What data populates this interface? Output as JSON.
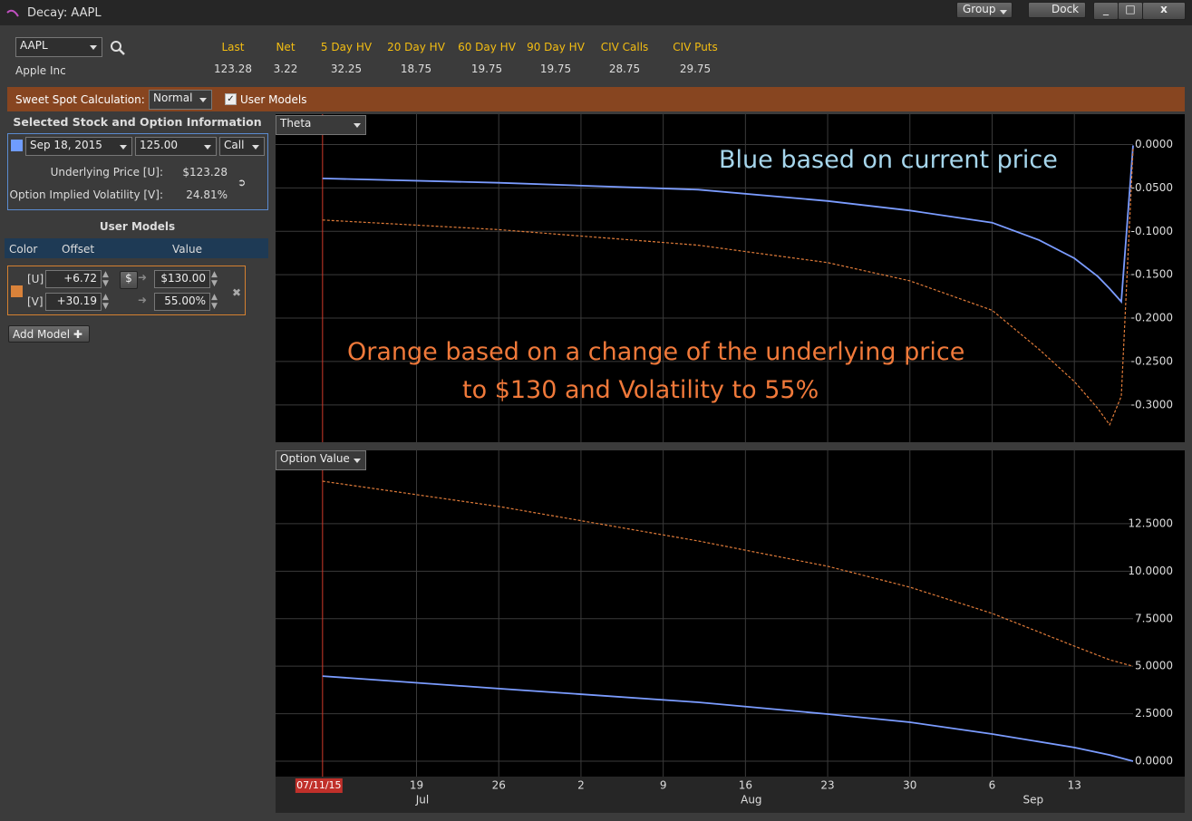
{
  "window": {
    "title": "Decay: AAPL",
    "buttons": [
      "Group",
      "Dock",
      "x"
    ]
  },
  "quote": {
    "symbol": "AAPL",
    "company": "Apple Inc",
    "fields": [
      {
        "label": "Last",
        "value": "123.28"
      },
      {
        "label": "Net",
        "value": "3.22"
      },
      {
        "label": "5 Day HV",
        "value": "32.25"
      },
      {
        "label": "20 Day HV",
        "value": "18.75"
      },
      {
        "label": "60 Day HV",
        "value": "19.75"
      },
      {
        "label": "90 Day HV",
        "value": "19.75"
      },
      {
        "label": "CIV Calls",
        "value": "28.75"
      },
      {
        "label": "CIV Puts",
        "value": "29.75"
      }
    ]
  },
  "toolbar": {
    "label": "Sweet Spot Calculation:",
    "mode": "Normal",
    "user_models": "User Models"
  },
  "selected": {
    "title": "Selected Stock and Option Information",
    "expiry": "Sep 18, 2015",
    "strike": "125.00",
    "type": "Call",
    "rows": [
      {
        "label": "Underlying Price [U]:",
        "value": "$123.28"
      },
      {
        "label": "Option Implied Volatility [V]:",
        "value": "24.81%"
      }
    ]
  },
  "user_models": {
    "title": "User Models",
    "columns": [
      "Color",
      "Offset",
      "Value"
    ],
    "rows": [
      {
        "label": "[U]",
        "offset": "+6.72",
        "unit": "$",
        "value": "$130.00"
      },
      {
        "label": "[V]",
        "offset": "+30.19",
        "value": "55.00%"
      }
    ],
    "add": "Add Model"
  },
  "chart_data": [
    {
      "type": "line",
      "selector": "Theta",
      "annotations": [
        {
          "text": "Blue based on current price",
          "color": "#a6d6ec"
        },
        {
          "text": "Orange based on a change of the underlying price",
          "color": "#f0793a"
        },
        {
          "text": "to $130 and Volatility to 55%",
          "color": "#f0793a"
        }
      ],
      "x": [
        "2015-07-11",
        "2015-07-26",
        "2015-08-12",
        "2015-08-23",
        "2015-08-30",
        "2015-09-06",
        "2015-09-10",
        "2015-09-13",
        "2015-09-15",
        "2015-09-16",
        "2015-09-17",
        "2015-09-18"
      ],
      "series": [
        {
          "color": "#7b9cff",
          "values": [
            -0.039,
            -0.044,
            -0.052,
            -0.065,
            -0.076,
            -0.09,
            -0.11,
            -0.131,
            -0.152,
            -0.166,
            -0.181,
            -0.001
          ]
        },
        {
          "color": "#e07b39",
          "dashed": true,
          "values": [
            -0.087,
            -0.098,
            -0.116,
            -0.136,
            -0.157,
            -0.191,
            -0.236,
            -0.273,
            -0.304,
            -0.323,
            -0.29,
            -0.005
          ]
        }
      ],
      "xlim": [
        "2015-07-07",
        "2015-09-18"
      ],
      "ylim": [
        -0.343,
        0.035
      ],
      "yticks": [
        {
          "value": 0,
          "label": "0.0000"
        },
        {
          "value": -0.05,
          "label": "-0.0500"
        },
        {
          "value": -0.1,
          "label": "-0.1000"
        },
        {
          "value": -0.15,
          "label": "-0.1500"
        },
        {
          "value": -0.2,
          "label": "-0.2000"
        },
        {
          "value": -0.25,
          "label": "-0.2500"
        },
        {
          "value": -0.3,
          "label": "-0.3000"
        }
      ],
      "grid": true
    },
    {
      "type": "line",
      "selector": "Option Value",
      "x": [
        "2015-07-11",
        "2015-07-26",
        "2015-08-12",
        "2015-08-23",
        "2015-08-30",
        "2015-09-06",
        "2015-09-13",
        "2015-09-16",
        "2015-09-18"
      ],
      "series": [
        {
          "color": "#7b9cff",
          "values": [
            4.48,
            3.82,
            3.1,
            2.48,
            2.05,
            1.43,
            0.72,
            0.33,
            0
          ]
        },
        {
          "color": "#e07b39",
          "dashed": true,
          "values": [
            14.74,
            13.41,
            11.59,
            10.26,
            9.16,
            7.78,
            6.06,
            5.34,
            5.0
          ]
        }
      ],
      "xlim": [
        "2015-07-07",
        "2015-09-18"
      ],
      "ylim": [
        -0.81,
        16.36
      ],
      "yticks": [
        {
          "value": 0,
          "label": "0.0000"
        },
        {
          "value": 2.5,
          "label": "2.5000"
        },
        {
          "value": 5,
          "label": "5.0000"
        },
        {
          "value": 7.5,
          "label": "7.5000"
        },
        {
          "value": 10,
          "label": "10.0000"
        },
        {
          "value": 12.5,
          "label": "12.5000"
        }
      ],
      "xticks": [
        {
          "value": "2015-07-19",
          "label": "19"
        },
        {
          "value": "2015-07-26",
          "label": "26"
        },
        {
          "value": "2015-08-02",
          "label": "2"
        },
        {
          "value": "2015-08-09",
          "label": "9"
        },
        {
          "value": "2015-08-16",
          "label": "16"
        },
        {
          "value": "2015-08-23",
          "label": "23"
        },
        {
          "value": "2015-08-30",
          "label": "30"
        },
        {
          "value": "2015-09-06",
          "label": "6"
        },
        {
          "value": "2015-09-13",
          "label": "13"
        }
      ],
      "months": [
        {
          "value": "2015-07",
          "label": "Jul"
        },
        {
          "value": "2015-08",
          "label": "Aug"
        },
        {
          "value": "2015-09",
          "label": "Sep"
        }
      ],
      "current": {
        "value": "2015-07-11",
        "label": "07/11/15"
      },
      "grid": true
    }
  ]
}
